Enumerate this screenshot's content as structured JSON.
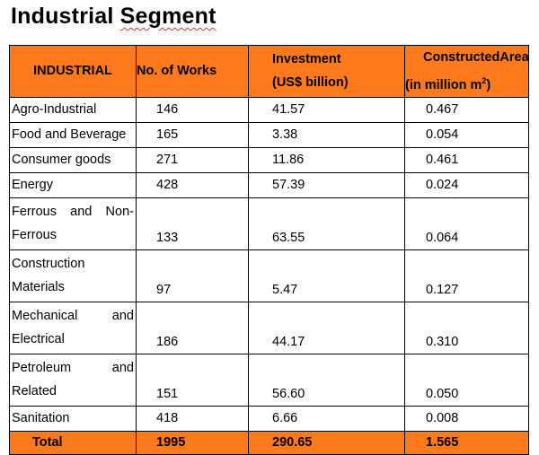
{
  "title": {
    "word1": "Industrial",
    "word2": "Segment"
  },
  "header": {
    "industrial": "INDUSTRIAL",
    "works": "No. of Works",
    "investment_l1": "Investment",
    "investment_l2": "(US$ billion)",
    "area_l1a": "Constructed",
    "area_l1b": "Area",
    "area_l2": "(in million m",
    "area_sup": "2",
    "area_close": ")"
  },
  "rows": [
    {
      "name": "Agro-Industrial",
      "works": "146",
      "investment": "41.57",
      "area": "0.467"
    },
    {
      "name": "Food and Beverage",
      "works": "165",
      "investment": "3.38",
      "area": "0.054"
    },
    {
      "name": "Consumer goods",
      "works": "271",
      "investment": "11.86",
      "area": "0.461"
    },
    {
      "name": "Energy",
      "works": "428",
      "investment": "57.39",
      "area": "0.024"
    },
    {
      "name_l1a": "Ferrous",
      "name_l1b": "and",
      "name_l1c": "Non-",
      "name_l2": "Ferrous",
      "works": "133",
      "investment": "63.55",
      "area": "0.064"
    },
    {
      "name_l1": "Construction",
      "name_l2": "Materials",
      "works": "97",
      "investment": "5.47",
      "area": "0.127"
    },
    {
      "name_l1a": "Mechanical",
      "name_l1b": "and",
      "name_l2": "Electrical",
      "works": "186",
      "investment": "44.17",
      "area": "0.310"
    },
    {
      "name_l1a": "Petroleum",
      "name_l1b": "and",
      "name_l2": "Related",
      "works": "151",
      "investment": "56.60",
      "area": "0.050"
    },
    {
      "name": "Sanitation",
      "works": "418",
      "investment": "6.66",
      "area": "0.008"
    }
  ],
  "total": {
    "label": "Total",
    "works": "1995",
    "investment": "290.65",
    "area": "1.565"
  },
  "colors": {
    "header_bg": "#ff7a1c",
    "total_bg": "#ff7a1c"
  }
}
